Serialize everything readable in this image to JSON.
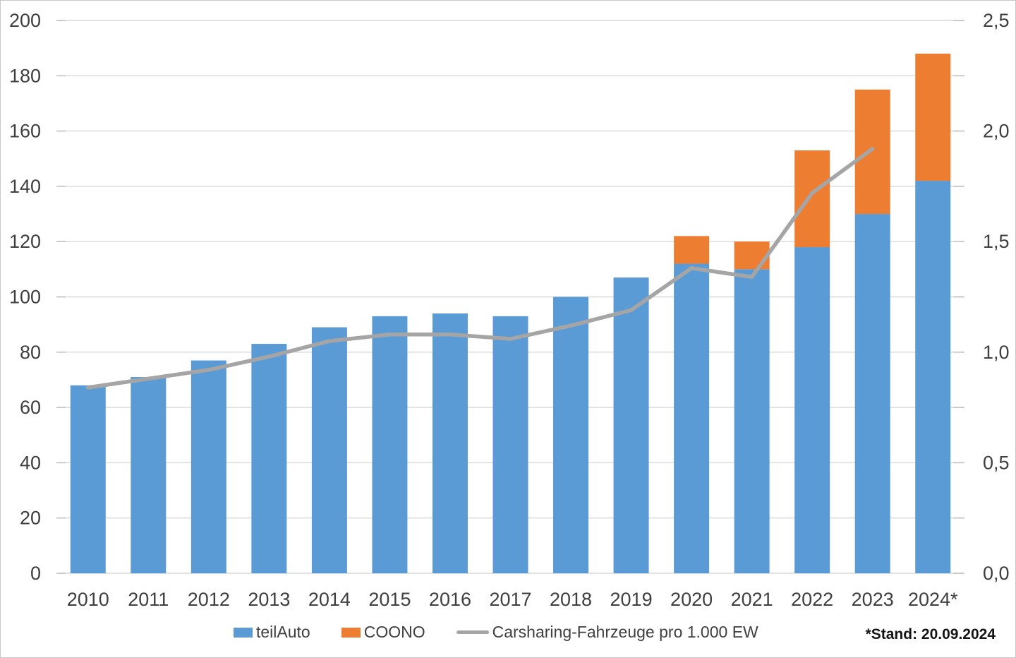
{
  "footnote": "*Stand: 20.09.2024",
  "colors": {
    "teilauto_blue": "#5b9bd5",
    "coono_orange": "#ed7d31",
    "line_gray": "#a5a5a5",
    "gridline_gray": "#d9d9d9",
    "tick_gray": "#c2c2c2",
    "axis_text": "#3f3f3f"
  },
  "legend": {
    "items": [
      {
        "label": "teilAuto",
        "swatch": "rect",
        "color": "#5b9bd5"
      },
      {
        "label": "COONO",
        "swatch": "rect",
        "color": "#ed7d31"
      },
      {
        "label": "Carsharing-Fahrzeuge pro 1.000 EW",
        "swatch": "line",
        "color": "#a5a5a5"
      }
    ]
  },
  "chart_data": {
    "type": "bar",
    "subtype": "stacked-bars-with-secondary-axis-line",
    "title": "",
    "categories": [
      "2010",
      "2011",
      "2012",
      "2013",
      "2014",
      "2015",
      "2016",
      "2017",
      "2018",
      "2019",
      "2020",
      "2021",
      "2022",
      "2023",
      "2024*"
    ],
    "series": [
      {
        "name": "teilAuto",
        "kind": "bar",
        "axis": "left",
        "color": "#5b9bd5",
        "values": [
          68,
          71,
          77,
          83,
          89,
          93,
          94,
          93,
          100,
          107,
          112,
          110,
          118,
          130,
          142
        ]
      },
      {
        "name": "COONO",
        "kind": "bar",
        "axis": "left",
        "color": "#ed7d31",
        "values": [
          0,
          0,
          0,
          0,
          0,
          0,
          0,
          0,
          0,
          0,
          10,
          10,
          35,
          45,
          46
        ]
      },
      {
        "name": "Carsharing-Fahrzeuge pro 1.000 EW",
        "kind": "line",
        "axis": "right",
        "color": "#a5a5a5",
        "values": [
          0.84,
          0.88,
          0.92,
          0.98,
          1.05,
          1.08,
          1.08,
          1.06,
          1.12,
          1.19,
          1.38,
          1.34,
          1.72,
          1.92,
          null
        ]
      }
    ],
    "stacked_totals": [
      68,
      71,
      77,
      83,
      89,
      93,
      94,
      93,
      100,
      107,
      122,
      120,
      153,
      175,
      188
    ],
    "left_axis": {
      "min": 0,
      "max": 200,
      "step": 20,
      "tick_labels": [
        "0",
        "20",
        "40",
        "60",
        "80",
        "100",
        "120",
        "140",
        "160",
        "180",
        "200"
      ]
    },
    "right_axis": {
      "min": 0,
      "max": 2.5,
      "step": 0.5,
      "tick_labels": [
        "0,0",
        "0,5",
        "1,0",
        "1,5",
        "2,0",
        "2,5"
      ]
    },
    "grid": true,
    "legend_position": "bottom"
  }
}
